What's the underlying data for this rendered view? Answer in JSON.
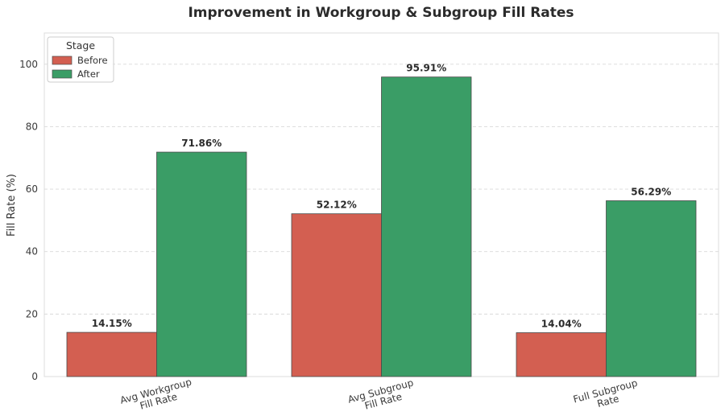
{
  "chart_data": {
    "type": "bar",
    "title": "Improvement in Workgroup & Subgroup Fill Rates",
    "xlabel": "",
    "ylabel": "Fill Rate (%)",
    "ylim": [
      0,
      110
    ],
    "yticks": [
      0,
      20,
      40,
      60,
      80,
      100
    ],
    "categories": [
      [
        "Avg Workgroup",
        "Fill Rate"
      ],
      [
        "Avg Subgroup",
        "Fill Rate"
      ],
      [
        "Full Subgroup",
        "Rate"
      ]
    ],
    "series": [
      {
        "name": "Before",
        "color": "#d35f51",
        "values": [
          14.15,
          52.12,
          14.04
        ],
        "labels": [
          "14.15%",
          "52.12%",
          "14.04%"
        ]
      },
      {
        "name": "After",
        "color": "#3a9d66",
        "values": [
          71.86,
          95.91,
          56.29
        ],
        "labels": [
          "71.86%",
          "95.91%",
          "56.29%"
        ]
      }
    ],
    "legend": {
      "title": "Stage",
      "position": "top-left"
    },
    "grid": true
  }
}
